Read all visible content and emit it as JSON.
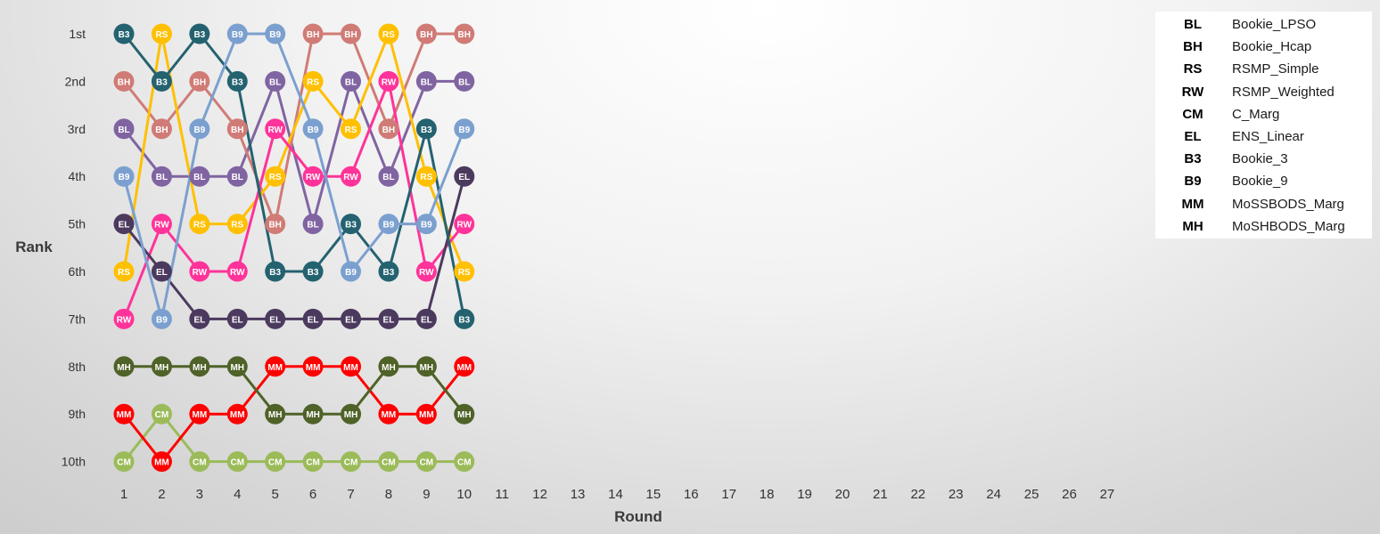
{
  "chart_data": {
    "type": "line",
    "title": "",
    "xlabel": "Round",
    "ylabel": "Rank",
    "x_ticks": [
      1,
      2,
      3,
      4,
      5,
      6,
      7,
      8,
      9,
      10,
      11,
      12,
      13,
      14,
      15,
      16,
      17,
      18,
      19,
      20,
      21,
      22,
      23,
      24,
      25,
      26,
      27
    ],
    "y_ticks": [
      "1st",
      "2nd",
      "3rd",
      "4th",
      "5th",
      "6th",
      "7th",
      "8th",
      "9th",
      "10th"
    ],
    "x_range": [
      1,
      27
    ],
    "y_range": [
      1,
      10
    ],
    "y_inverted": true,
    "grid": false,
    "legend_position": "top-right",
    "series": [
      {
        "name": "Bookie_LPSO",
        "abbr": "BL",
        "color": "#8064A2",
        "values": [
          3,
          4,
          4,
          4,
          2,
          5,
          2,
          4,
          2,
          2
        ]
      },
      {
        "name": "Bookie_Hcap",
        "abbr": "BH",
        "color": "#D07B76",
        "values": [
          2,
          3,
          2,
          3,
          5,
          1,
          1,
          3,
          1,
          1
        ]
      },
      {
        "name": "RSMP_Simple",
        "abbr": "RS",
        "color": "#FFC000",
        "values": [
          6,
          1,
          5,
          5,
          4,
          2,
          3,
          1,
          4,
          6
        ]
      },
      {
        "name": "RSMP_Weighted",
        "abbr": "RW",
        "color": "#FF3399",
        "values": [
          7,
          5,
          6,
          6,
          3,
          4,
          4,
          2,
          6,
          5
        ]
      },
      {
        "name": "C_Marg",
        "abbr": "CM",
        "color": "#9BBB59",
        "values": [
          10,
          9,
          10,
          10,
          10,
          10,
          10,
          10,
          10,
          10
        ]
      },
      {
        "name": "ENS_Linear",
        "abbr": "EL",
        "color": "#4B3A5E",
        "values": [
          5,
          6,
          7,
          7,
          7,
          7,
          7,
          7,
          7,
          4
        ]
      },
      {
        "name": "Bookie_3",
        "abbr": "B3",
        "color": "#246270",
        "values": [
          1,
          2,
          1,
          2,
          6,
          6,
          5,
          6,
          3,
          7
        ]
      },
      {
        "name": "Bookie_9",
        "abbr": "B9",
        "color": "#7BA0CF",
        "values": [
          4,
          7,
          3,
          1,
          1,
          3,
          6,
          5,
          5,
          3
        ]
      },
      {
        "name": "MoSSBODS_Marg",
        "abbr": "MM",
        "color": "#FF0000",
        "values": [
          9,
          10,
          9,
          9,
          8,
          8,
          8,
          9,
          9,
          8
        ]
      },
      {
        "name": "MoSHBODS_Marg",
        "abbr": "MH",
        "color": "#4F6228",
        "values": [
          8,
          8,
          8,
          8,
          9,
          9,
          9,
          8,
          8,
          9
        ]
      }
    ]
  }
}
